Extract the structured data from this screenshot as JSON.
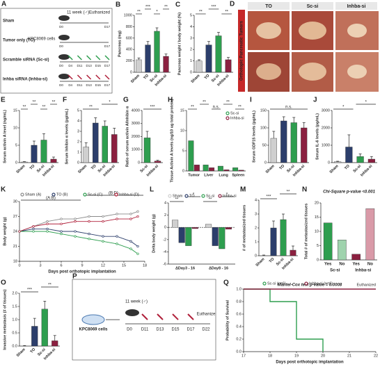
{
  "diagram_a": {
    "label": "A",
    "groups": [
      "Sham",
      "Tumor only (TO)",
      "Scramble siRNA (Sc-si)",
      "Inhba siRNA (Inhba-si)"
    ],
    "group_colors": [
      "#222222",
      "#222222",
      "#2e9e4f",
      "#b0203a"
    ],
    "cells": "KPC8069 cells",
    "age": "11 week (♂)",
    "end": "Euthanized",
    "timelines": [
      [
        "D0",
        "D17"
      ],
      [
        "D0",
        "D17"
      ],
      [
        "D0",
        "D4",
        "D11",
        "D13",
        "D15",
        "D17"
      ],
      [
        "D0",
        "D4",
        "D11",
        "D13",
        "D15",
        "D17"
      ]
    ]
  },
  "photo_d": {
    "label": "D",
    "columns": [
      "TO",
      "Sc-si",
      "Inhba-si"
    ],
    "side": "Orthotopic Pancreatic Tumors"
  },
  "diagram_p": {
    "label": "P",
    "cells": "KPC8069 cells",
    "age": "11 week (♂)",
    "end": "Euthanize",
    "days": [
      "D0",
      "D11",
      "D13",
      "D15",
      "D17",
      "D22"
    ]
  },
  "chart_data": [
    {
      "type": "bar",
      "label": "B",
      "ylabel": "Pancreas (mg)",
      "categories": [
        "Sham",
        "TO",
        "Sc-si",
        "Inhba-si"
      ],
      "values": [
        220,
        480,
        720,
        280
      ],
      "errors": [
        30,
        60,
        60,
        40
      ],
      "colors": [
        "#cfcfcf",
        "#2c3e6b",
        "#2e9e4f",
        "#8b2040"
      ],
      "ylim": [
        0,
        1000
      ],
      "yticks": [
        0,
        200,
        400,
        600,
        800,
        1000
      ],
      "annotations": [
        "**",
        "***",
        "*",
        "**"
      ]
    },
    {
      "type": "bar",
      "label": "C",
      "ylabel": "Pancreas weight / body weight (%)",
      "categories": [
        "Sham",
        "TO",
        "Sc-si",
        "Inhba-si"
      ],
      "values": [
        1.0,
        2.4,
        3.2,
        1.1
      ],
      "errors": [
        0.1,
        0.3,
        0.3,
        0.2
      ],
      "colors": [
        "#cfcfcf",
        "#2c3e6b",
        "#2e9e4f",
        "#8b2040"
      ],
      "ylim": [
        0,
        5
      ],
      "yticks": [
        0,
        1,
        2,
        3,
        4,
        5
      ],
      "annotations": [
        "**",
        "***",
        "**"
      ]
    },
    {
      "type": "bar",
      "label": "E",
      "ylabel": "Serum activin A level (ng/mL)",
      "categories": [
        "Sham",
        "TO",
        "Sc-si",
        "Inhba-si"
      ],
      "values": [
        0.2,
        5,
        6.5,
        1
      ],
      "errors": [
        0.1,
        1.2,
        1.8,
        0.6
      ],
      "colors": [
        "#cfcfcf",
        "#2c3e6b",
        "#2e9e4f",
        "#8b2040"
      ],
      "ylim": [
        0,
        15
      ],
      "yticks": [
        0,
        5,
        10,
        15
      ],
      "annotations": [
        "**",
        "**",
        "**",
        "**"
      ]
    },
    {
      "type": "bar",
      "label": "F",
      "ylabel": "Serum Inhibin α levels (pg/mL)",
      "categories": [
        "Sham",
        "TO",
        "Sc-si",
        "Inhba-si"
      ],
      "values": [
        1.5,
        3.8,
        3.5,
        2.7
      ],
      "errors": [
        0.4,
        0.5,
        0.5,
        0.6
      ],
      "colors": [
        "#cfcfcf",
        "#2c3e6b",
        "#2e9e4f",
        "#8b2040"
      ],
      "ylim": [
        0,
        5
      ],
      "yticks": [
        0,
        1,
        2,
        3,
        4,
        5
      ],
      "annotations": [
        "**",
        "*"
      ]
    },
    {
      "type": "bar",
      "label": "G",
      "ylabel": "Ratio of serum activin A/Inhibin α",
      "categories": [
        "Sc-si",
        "Inhba-si"
      ],
      "values": [
        1900,
        120
      ],
      "errors": [
        500,
        60
      ],
      "colors": [
        "#2e9e4f",
        "#8b2040"
      ],
      "ylim": [
        0,
        4000
      ],
      "yticks": [
        0,
        1000,
        2000,
        3000,
        4000
      ],
      "annotations": [
        "***"
      ]
    },
    {
      "type": "bar",
      "label": "H",
      "ylabel": "Tissue Activin A levels (ng/10 ug total protein)",
      "categories": [
        "Tumor",
        "Liver",
        "Lung",
        "Spleen"
      ],
      "series": [
        {
          "name": "Sc-si",
          "color": "#2e9e4f",
          "values": [
            7.5,
            1.5,
            1.2,
            0.8
          ]
        },
        {
          "name": "Inhba-si",
          "color": "#8b2040",
          "values": [
            1.5,
            0.8,
            0.3,
            0.2
          ]
        }
      ],
      "ylim": [
        0,
        15
      ],
      "yticks": [
        0,
        5,
        10,
        15
      ],
      "annotations": [
        "**",
        "**",
        "n.s.",
        "**",
        "**"
      ]
    },
    {
      "type": "bar",
      "label": "I",
      "ylabel": "Serum GDF15 levels (pg/mL)",
      "categories": [
        "Sham",
        "TO",
        "Sc-si",
        "Inhba-si"
      ],
      "values": [
        70,
        120,
        115,
        100
      ],
      "errors": [
        20,
        12,
        15,
        15
      ],
      "colors": [
        "#cfcfcf",
        "#2c3e6b",
        "#2e9e4f",
        "#8b2040"
      ],
      "ylim": [
        0,
        150
      ],
      "yticks": [
        0,
        50,
        100,
        150
      ],
      "annotations": [
        "n.s."
      ]
    },
    {
      "type": "bar",
      "label": "J",
      "ylabel": "Serum IL-6 levels (pg/mL)",
      "categories": [
        "Sham",
        "TO",
        "Sc-si",
        "Inhba-si"
      ],
      "values": [
        50,
        900,
        350,
        200
      ],
      "errors": [
        30,
        700,
        150,
        150
      ],
      "colors": [
        "#cfcfcf",
        "#2c3e6b",
        "#2e9e4f",
        "#8b2040"
      ],
      "ylim": [
        0,
        3000
      ],
      "yticks": [
        0,
        1000,
        2000,
        3000
      ],
      "annotations": [
        "*",
        "*"
      ]
    },
    {
      "type": "line",
      "label": "K",
      "ylabel": "Body weight (g)",
      "xlabel": "Days post orthotopic implantation",
      "x": [
        0,
        2,
        4,
        6,
        8,
        10,
        12,
        14,
        16,
        17
      ],
      "series": [
        {
          "name": "Sham (A)",
          "color": "#8a8a8a",
          "values": [
            24,
            25,
            26,
            26.5,
            26.5,
            27,
            27,
            27.5,
            27.5,
            28
          ]
        },
        {
          "name": "TO (B)",
          "color": "#2c3e6b",
          "values": [
            24,
            24.5,
            24.5,
            24,
            24,
            23.5,
            23,
            23,
            22,
            21
          ]
        },
        {
          "name": "Sc-si (C)",
          "color": "#2e9e4f",
          "values": [
            24,
            24,
            24,
            23.5,
            23,
            22.5,
            22,
            21.5,
            20.5,
            19.5
          ]
        },
        {
          "name": "Inhba-si (D)",
          "color": "#b0203a",
          "values": [
            24,
            25,
            25.5,
            25.5,
            26,
            26,
            26,
            26.5,
            26.5,
            27
          ]
        }
      ],
      "xlim": [
        0,
        18
      ],
      "xticks": [
        0,
        3,
        6,
        9,
        12,
        15,
        18
      ],
      "ylim": [
        18,
        30
      ],
      "yticks": [
        18,
        21,
        24,
        27,
        30
      ],
      "annotations": [
        "(A:B)",
        "(B:D)"
      ]
    },
    {
      "type": "bar",
      "label": "L",
      "ylabel": "Delta body weight (g)",
      "categories": [
        "ΔDay3 - 16",
        "ΔDay8 - 16"
      ],
      "series": [
        {
          "name": "Sham",
          "color": "#cfcfcf",
          "values": [
            1.2,
            0.5
          ]
        },
        {
          "name": "TO",
          "color": "#2c3e6b",
          "values": [
            -2.5,
            -3
          ]
        },
        {
          "name": "Sc-si",
          "color": "#2e9e4f",
          "values": [
            -3,
            -3.5
          ]
        },
        {
          "name": "Inhba-si",
          "color": "#8b2040",
          "values": [
            -0.2,
            -0.3
          ]
        }
      ],
      "ylim": [
        -6,
        4
      ],
      "yticks": [
        -6,
        -4,
        -2,
        0,
        2,
        4
      ],
      "annotations": [
        "**",
        "*",
        "**",
        "*"
      ]
    },
    {
      "type": "bar",
      "label": "M",
      "ylabel": "# of metastasized tissues",
      "categories": [
        "Sham",
        "TO",
        "Sc-si",
        "Inhba-si"
      ],
      "values": [
        0,
        2,
        2.6,
        0.4
      ],
      "errors": [
        0.05,
        0.5,
        0.4,
        0.3
      ],
      "colors": [
        "#cfcfcf",
        "#2c3e6b",
        "#2e9e4f",
        "#8b2040"
      ],
      "ylim": [
        0,
        4
      ],
      "yticks": [
        0,
        1,
        2,
        3,
        4
      ],
      "annotations": [
        "***",
        "**"
      ]
    },
    {
      "type": "bar",
      "label": "N",
      "title": "Chi-Square p-value <0.001",
      "ylabel": "Total # of metastasized tissues",
      "categories": [
        "Yes",
        "No",
        "Yes",
        "No"
      ],
      "groups": [
        "Sc-si",
        "Inhba-si"
      ],
      "values": [
        13,
        7,
        2,
        18
      ],
      "colors": [
        "#2e9e4f",
        "#9fd3ad",
        "#8b2040",
        "#d99aa8"
      ],
      "ylim": [
        0,
        20
      ],
      "yticks": [
        0,
        5,
        10,
        15,
        20
      ]
    },
    {
      "type": "bar",
      "label": "O",
      "ylabel": "Invasive metastasis (# of tissues)",
      "categories": [
        "Sham",
        "TO",
        "Sc-si",
        "Inhba-si"
      ],
      "values": [
        0,
        0.75,
        1.4,
        0.2
      ],
      "errors": [
        0.02,
        0.3,
        0.3,
        0.2
      ],
      "colors": [
        "#cfcfcf",
        "#2c3e6b",
        "#2e9e4f",
        "#8b2040"
      ],
      "ylim": [
        0,
        2
      ],
      "yticks": [
        {
          "value": 0,
          "label": "0.0"
        },
        0.5,
        {
          "value": 1,
          "label": "1.0"
        },
        1.5,
        {
          "value": 2,
          "label": "2.0"
        }
      ],
      "annotations": [
        "***",
        "**"
      ]
    },
    {
      "type": "line",
      "label": "Q",
      "step": true,
      "title": "Mantel-Cox test p-value = 0.0008",
      "note": "Euthanized",
      "ylabel": "Probability of Survival",
      "xlabel": "Days post orthotopic implantation",
      "series": [
        {
          "name": "Sc-si (n=6)",
          "color": "#2e9e4f",
          "x": [
            17,
            18,
            18,
            19,
            19,
            20,
            20
          ],
          "values": [
            1,
            1,
            0.8,
            0.8,
            0.2,
            0.2,
            0
          ]
        },
        {
          "name": "Inhba-si (n=6)",
          "color": "#8b2040",
          "x": [
            17,
            22
          ],
          "values": [
            1,
            1
          ]
        }
      ],
      "xlim": [
        17,
        22
      ],
      "xticks": [
        17,
        18,
        19,
        20,
        21,
        22
      ],
      "ylim": [
        0,
        1
      ],
      "yticks": [
        {
          "value": 0,
          "label": "0.0"
        },
        0.2,
        0.4,
        0.6,
        0.8,
        {
          "value": 1,
          "label": "1.0"
        }
      ]
    }
  ]
}
